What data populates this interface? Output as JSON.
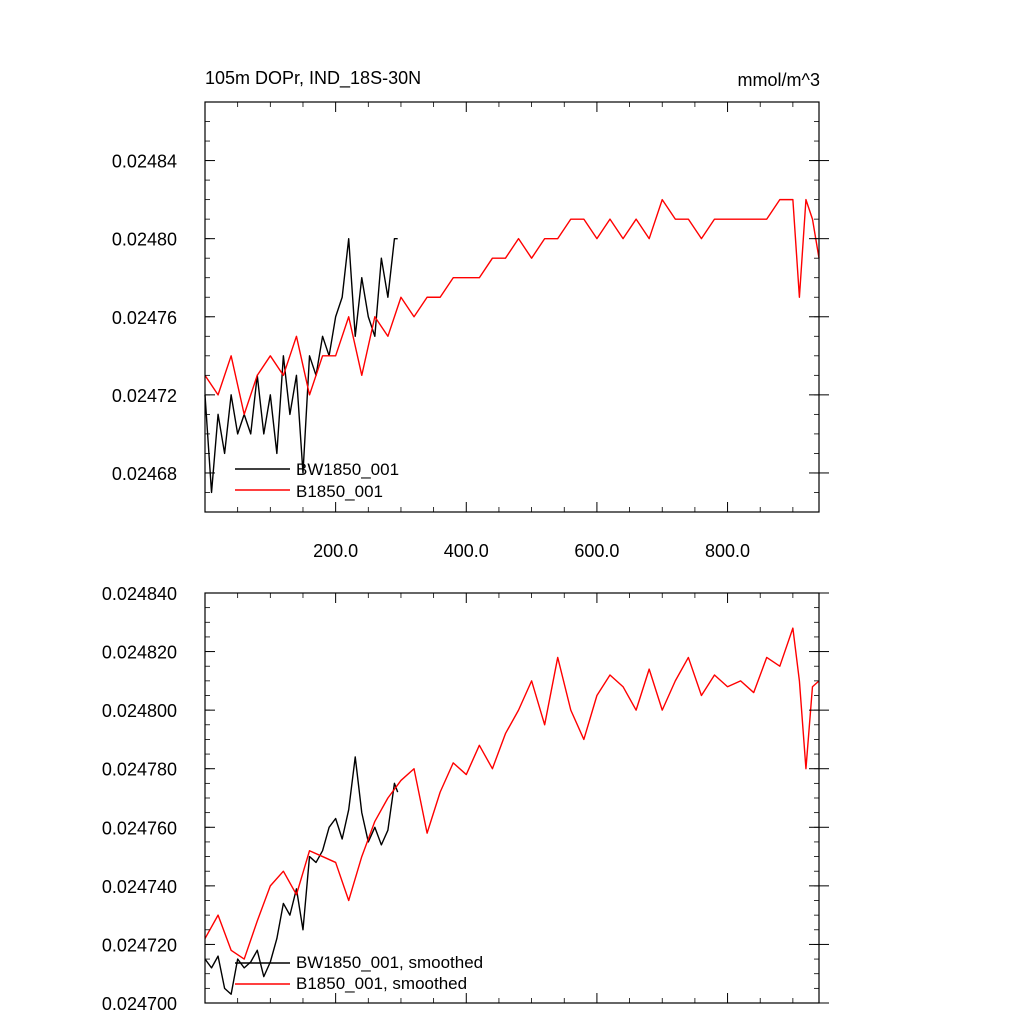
{
  "chart_data": [
    {
      "type": "line",
      "title": "105m DOPr, IND_18S-30N",
      "units": "mmol/m^3",
      "xlim": [
        0,
        940
      ],
      "ylim": [
        0.02466,
        0.02487
      ],
      "x_ticks": [
        200,
        400,
        600,
        800
      ],
      "x_tick_labels": [
        "200.0",
        "400.0",
        "600.0",
        "800.0"
      ],
      "y_ticks": [
        0.02468,
        0.02472,
        0.02476,
        0.0248,
        0.02484
      ],
      "y_tick_labels": [
        "0.02468",
        "0.02472",
        "0.02476",
        "0.02480",
        "0.02484"
      ],
      "legend_position": "bottom-left",
      "series": [
        {
          "name": "BW1850_001",
          "color": "#000000",
          "x": [
            0,
            10,
            20,
            30,
            40,
            50,
            60,
            70,
            80,
            90,
            100,
            110,
            120,
            130,
            140,
            150,
            160,
            170,
            180,
            190,
            200,
            210,
            220,
            230,
            240,
            250,
            260,
            270,
            280,
            290,
            295
          ],
          "y": [
            0.02472,
            0.02467,
            0.02471,
            0.02469,
            0.02472,
            0.0247,
            0.02471,
            0.0247,
            0.02473,
            0.0247,
            0.02472,
            0.02469,
            0.02474,
            0.02471,
            0.02473,
            0.02468,
            0.02474,
            0.02473,
            0.02475,
            0.02474,
            0.02476,
            0.02477,
            0.0248,
            0.02475,
            0.02478,
            0.02476,
            0.02475,
            0.02479,
            0.02477,
            0.0248,
            0.0248
          ]
        },
        {
          "name": "B1850_001",
          "color": "#ff0000",
          "x": [
            0,
            20,
            40,
            60,
            80,
            100,
            120,
            140,
            160,
            180,
            200,
            220,
            240,
            260,
            280,
            300,
            320,
            340,
            360,
            380,
            400,
            420,
            440,
            460,
            480,
            500,
            520,
            540,
            560,
            580,
            600,
            620,
            640,
            660,
            680,
            700,
            720,
            740,
            760,
            780,
            800,
            820,
            840,
            860,
            880,
            900,
            910,
            920,
            930,
            940
          ],
          "y": [
            0.02473,
            0.02472,
            0.02474,
            0.02471,
            0.02473,
            0.02474,
            0.02473,
            0.02475,
            0.02472,
            0.02474,
            0.02474,
            0.02476,
            0.02473,
            0.02476,
            0.02475,
            0.02477,
            0.02476,
            0.02477,
            0.02477,
            0.02478,
            0.02478,
            0.02478,
            0.02479,
            0.02479,
            0.0248,
            0.02479,
            0.0248,
            0.0248,
            0.02481,
            0.02481,
            0.0248,
            0.02481,
            0.0248,
            0.02481,
            0.0248,
            0.02482,
            0.02481,
            0.02481,
            0.0248,
            0.02481,
            0.02481,
            0.02481,
            0.02481,
            0.02481,
            0.02482,
            0.02482,
            0.02477,
            0.02482,
            0.02481,
            0.02479
          ]
        }
      ]
    },
    {
      "type": "line",
      "xlim": [
        0,
        940
      ],
      "ylim": [
        0.0247,
        0.02484
      ],
      "x_ticks": [
        200,
        400,
        600,
        800
      ],
      "y_ticks": [
        0.0247,
        0.02472,
        0.02474,
        0.02476,
        0.02478,
        0.0248,
        0.02482,
        0.02484
      ],
      "y_tick_labels": [
        "0.024700",
        "0.024720",
        "0.024740",
        "0.024760",
        "0.024780",
        "0.024800",
        "0.024820",
        "0.024840"
      ],
      "legend_position": "bottom-left",
      "series": [
        {
          "name": "BW1850_001, smoothed",
          "color": "#000000",
          "x": [
            0,
            10,
            20,
            30,
            40,
            50,
            60,
            70,
            80,
            90,
            100,
            110,
            120,
            130,
            140,
            150,
            160,
            170,
            180,
            190,
            200,
            210,
            220,
            230,
            240,
            250,
            260,
            270,
            280,
            290,
            295
          ],
          "y": [
            0.024715,
            0.024712,
            0.024716,
            0.024705,
            0.024703,
            0.024715,
            0.024712,
            0.024714,
            0.024718,
            0.024709,
            0.024714,
            0.024722,
            0.024734,
            0.02473,
            0.024739,
            0.024725,
            0.02475,
            0.024748,
            0.024752,
            0.02476,
            0.024763,
            0.024756,
            0.024766,
            0.024784,
            0.024765,
            0.024755,
            0.02476,
            0.024754,
            0.024759,
            0.024775,
            0.024772
          ]
        },
        {
          "name": "B1850_001, smoothed",
          "color": "#ff0000",
          "x": [
            0,
            20,
            40,
            60,
            80,
            100,
            120,
            140,
            160,
            180,
            200,
            220,
            240,
            260,
            280,
            300,
            320,
            340,
            360,
            380,
            400,
            420,
            440,
            460,
            480,
            500,
            520,
            540,
            560,
            580,
            600,
            620,
            640,
            660,
            680,
            700,
            720,
            740,
            760,
            780,
            800,
            820,
            840,
            860,
            880,
            900,
            910,
            920,
            930,
            940
          ],
          "y": [
            0.024722,
            0.02473,
            0.024718,
            0.024715,
            0.024728,
            0.02474,
            0.024745,
            0.024737,
            0.024752,
            0.02475,
            0.024748,
            0.024735,
            0.02475,
            0.024762,
            0.02477,
            0.024776,
            0.02478,
            0.024758,
            0.024772,
            0.024782,
            0.024778,
            0.024788,
            0.02478,
            0.024792,
            0.0248,
            0.02481,
            0.024795,
            0.024818,
            0.0248,
            0.02479,
            0.024805,
            0.024812,
            0.024808,
            0.0248,
            0.024814,
            0.0248,
            0.02481,
            0.024818,
            0.024805,
            0.024812,
            0.024808,
            0.02481,
            0.024806,
            0.024818,
            0.024815,
            0.024828,
            0.02481,
            0.02478,
            0.024808,
            0.02481
          ]
        }
      ]
    }
  ]
}
